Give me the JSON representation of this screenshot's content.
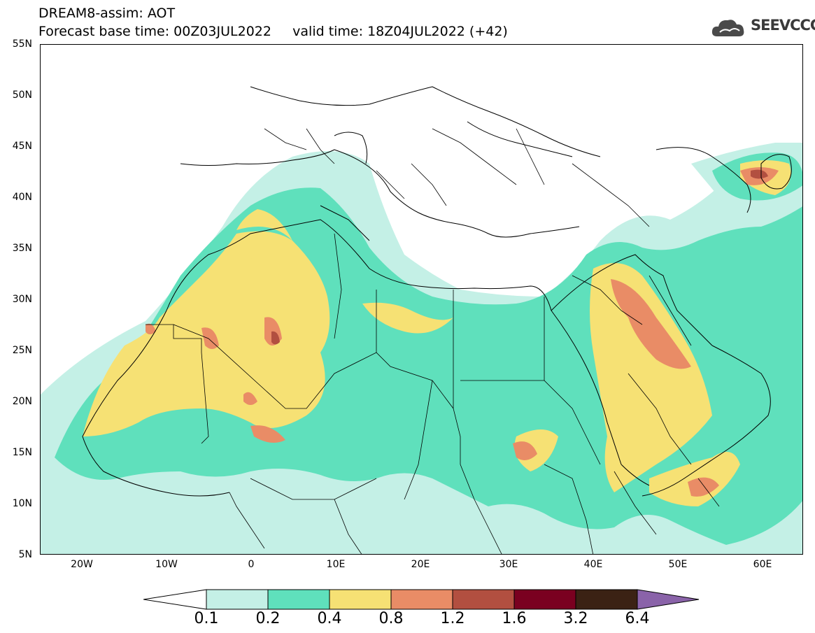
{
  "header": {
    "line1": "DREAM8-assim: AOT",
    "line2": "Forecast base time: 00Z03JUL2022     valid time: 18Z04JUL2022 (+42)"
  },
  "logo": {
    "icon": "cloud-icon",
    "text": "SEEVCCC"
  },
  "map": {
    "region": "North Africa, Middle East and Europe",
    "lat_labels": [
      "55N",
      "50N",
      "45N",
      "40N",
      "35N",
      "30N",
      "25N",
      "20N",
      "15N",
      "10N",
      "5N"
    ],
    "lon_labels": [
      "20W",
      "10W",
      "0",
      "10E",
      "20E",
      "30E",
      "40E",
      "50E",
      "60E"
    ],
    "colors": {
      "level1": "#c4f0e6",
      "level2": "#5fe0bc",
      "level3": "#f6e174",
      "level4": "#e98c66",
      "level5": "#b24f40",
      "level6": "#7a0020",
      "level7": "#3b2214",
      "over": "#8a63a9"
    }
  },
  "colorbar": {
    "labels": [
      "0.1",
      "0.2",
      "0.4",
      "0.8",
      "1.2",
      "1.6",
      "3.2",
      "6.4"
    ],
    "colors": [
      "#ffffff",
      "#c4f0e6",
      "#5fe0bc",
      "#f6e174",
      "#e98c66",
      "#b24f40",
      "#7a0020",
      "#3b2214",
      "#8a63a9"
    ]
  }
}
